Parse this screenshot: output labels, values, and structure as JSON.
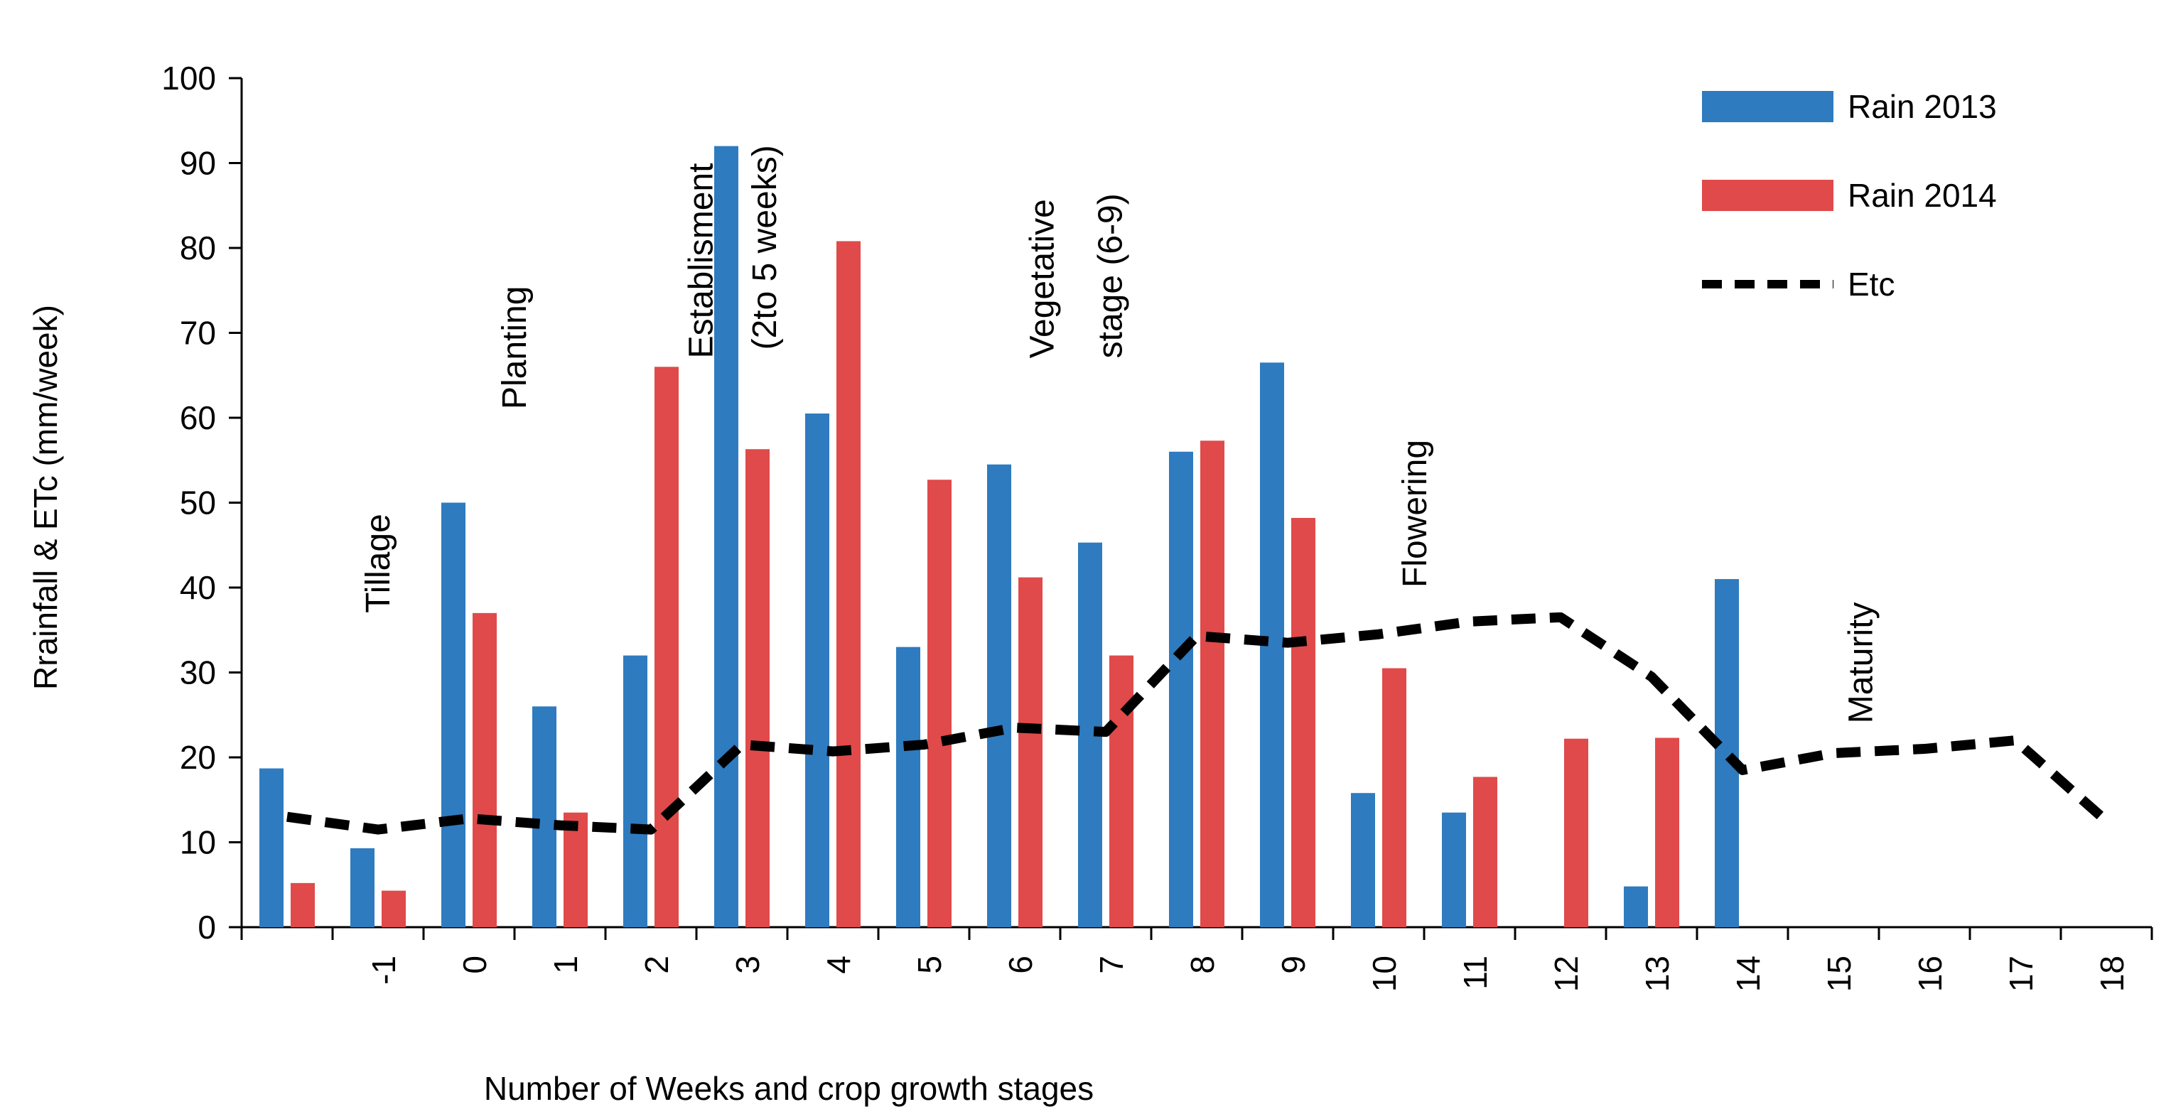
{
  "chart_data": {
    "type": "bar",
    "title": "",
    "xlabel": "Number of Weeks and crop growth stages",
    "ylabel": "Rrainfall & ETc (mm/week)",
    "ylim": [
      0,
      100
    ],
    "yticks": [
      "0",
      "10",
      "20",
      "30",
      "40",
      "50",
      "60",
      "70",
      "80",
      "90",
      "100"
    ],
    "categories": [
      "",
      "-1",
      "0",
      "1",
      "2",
      "3",
      "4",
      "5",
      "6",
      "7",
      "8",
      "9",
      "10",
      "11",
      "12",
      "13",
      "14",
      "15",
      "16",
      "17",
      "18"
    ],
    "series": [
      {
        "name": "Rain 2013",
        "type": "bar",
        "color": "#2f7bbf",
        "values": [
          18.7,
          9.3,
          50,
          26,
          32,
          92,
          60.5,
          33,
          54.5,
          45.3,
          56,
          66.5,
          15.8,
          13.5,
          0,
          4.8,
          41,
          0,
          0,
          0,
          null
        ]
      },
      {
        "name": "Rain 2014",
        "type": "bar",
        "color": "#e04a4a",
        "values": [
          5.2,
          4.3,
          37,
          13.5,
          66,
          56.3,
          80.8,
          52.7,
          41.2,
          32,
          57.3,
          48.2,
          30.5,
          17.7,
          22.2,
          22.3,
          0,
          0,
          0,
          0,
          null
        ]
      },
      {
        "name": "Etc",
        "type": "line",
        "style": "dashed",
        "color": "#000000",
        "values": [
          13,
          11.5,
          12.8,
          12,
          11.5,
          21.5,
          20.7,
          21.5,
          23.5,
          23,
          34.3,
          33.5,
          34.5,
          36,
          36.5,
          29.5,
          18.5,
          20.5,
          21,
          22,
          12.5
        ]
      }
    ],
    "legend": {
      "position": "top-right",
      "entries": [
        "Rain 2013",
        "Rain 2014",
        "Etc"
      ]
    },
    "annotations": [
      {
        "text": "Tillage",
        "week_index": 1,
        "y": 37
      },
      {
        "text": "Planting",
        "week_index": 2.5,
        "y": 61
      },
      {
        "text": "Establisment",
        "week_index": 4.55,
        "y": 67
      },
      {
        "text": "(2to 5 weeks)",
        "week_index": 5.25,
        "y": 68
      },
      {
        "text": "Vegetative",
        "week_index": 8.3,
        "y": 67
      },
      {
        "text": "stage (6-9)",
        "week_index": 9.05,
        "y": 67
      },
      {
        "text": "Flowering",
        "week_index": 12.4,
        "y": 40
      },
      {
        "text": "Maturity",
        "week_index": 17.3,
        "y": 24
      }
    ]
  }
}
